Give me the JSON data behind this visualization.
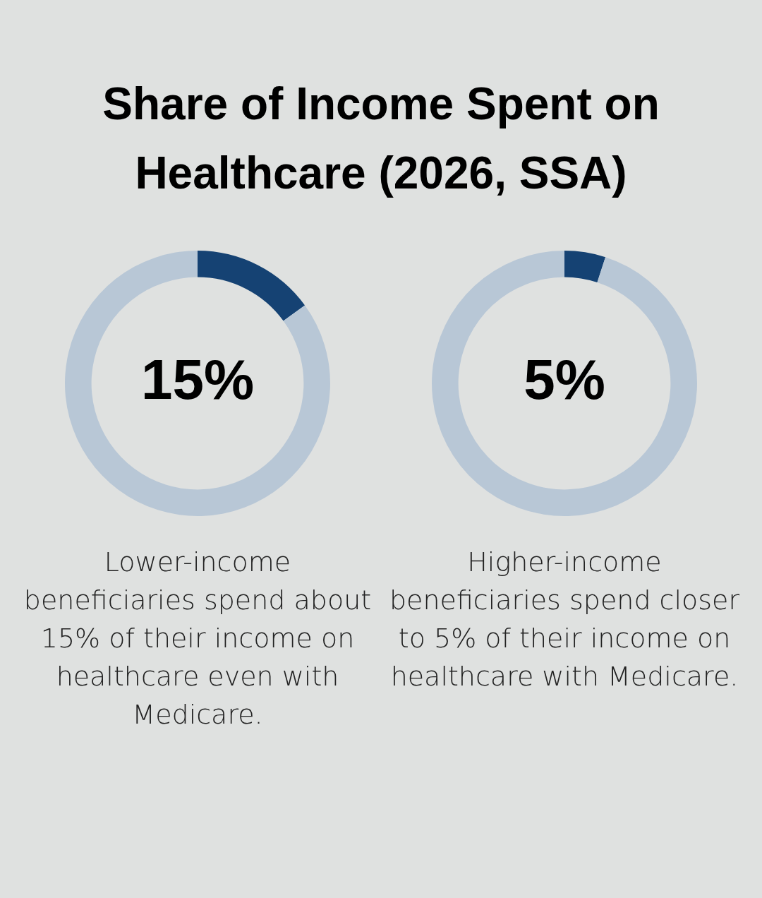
{
  "chart_data": [
    {
      "type": "donut",
      "title": "Share of Income Spent on Healthcare (2026, SSA)",
      "categories": [
        null,
        null
      ],
      "values": [
        15,
        85
      ],
      "colors": [
        "#154273",
        "#b8c7d6"
      ],
      "value_labels": [
        "15%",
        null
      ],
      "annotations": [
        "Lower-income beneficiaries spend about 15% of their income on healthcare even with Medicare."
      ]
    },
    {
      "type": "donut",
      "categories": [
        null,
        null
      ],
      "values": [
        5,
        95
      ],
      "colors": [
        "#154273",
        "#b8c7d6"
      ],
      "value_labels": [
        "5%",
        null
      ],
      "annotations": [
        "Higher-income beneficiaries spend closer to 5% of their income on healthcare with Medicare."
      ]
    }
  ]
}
